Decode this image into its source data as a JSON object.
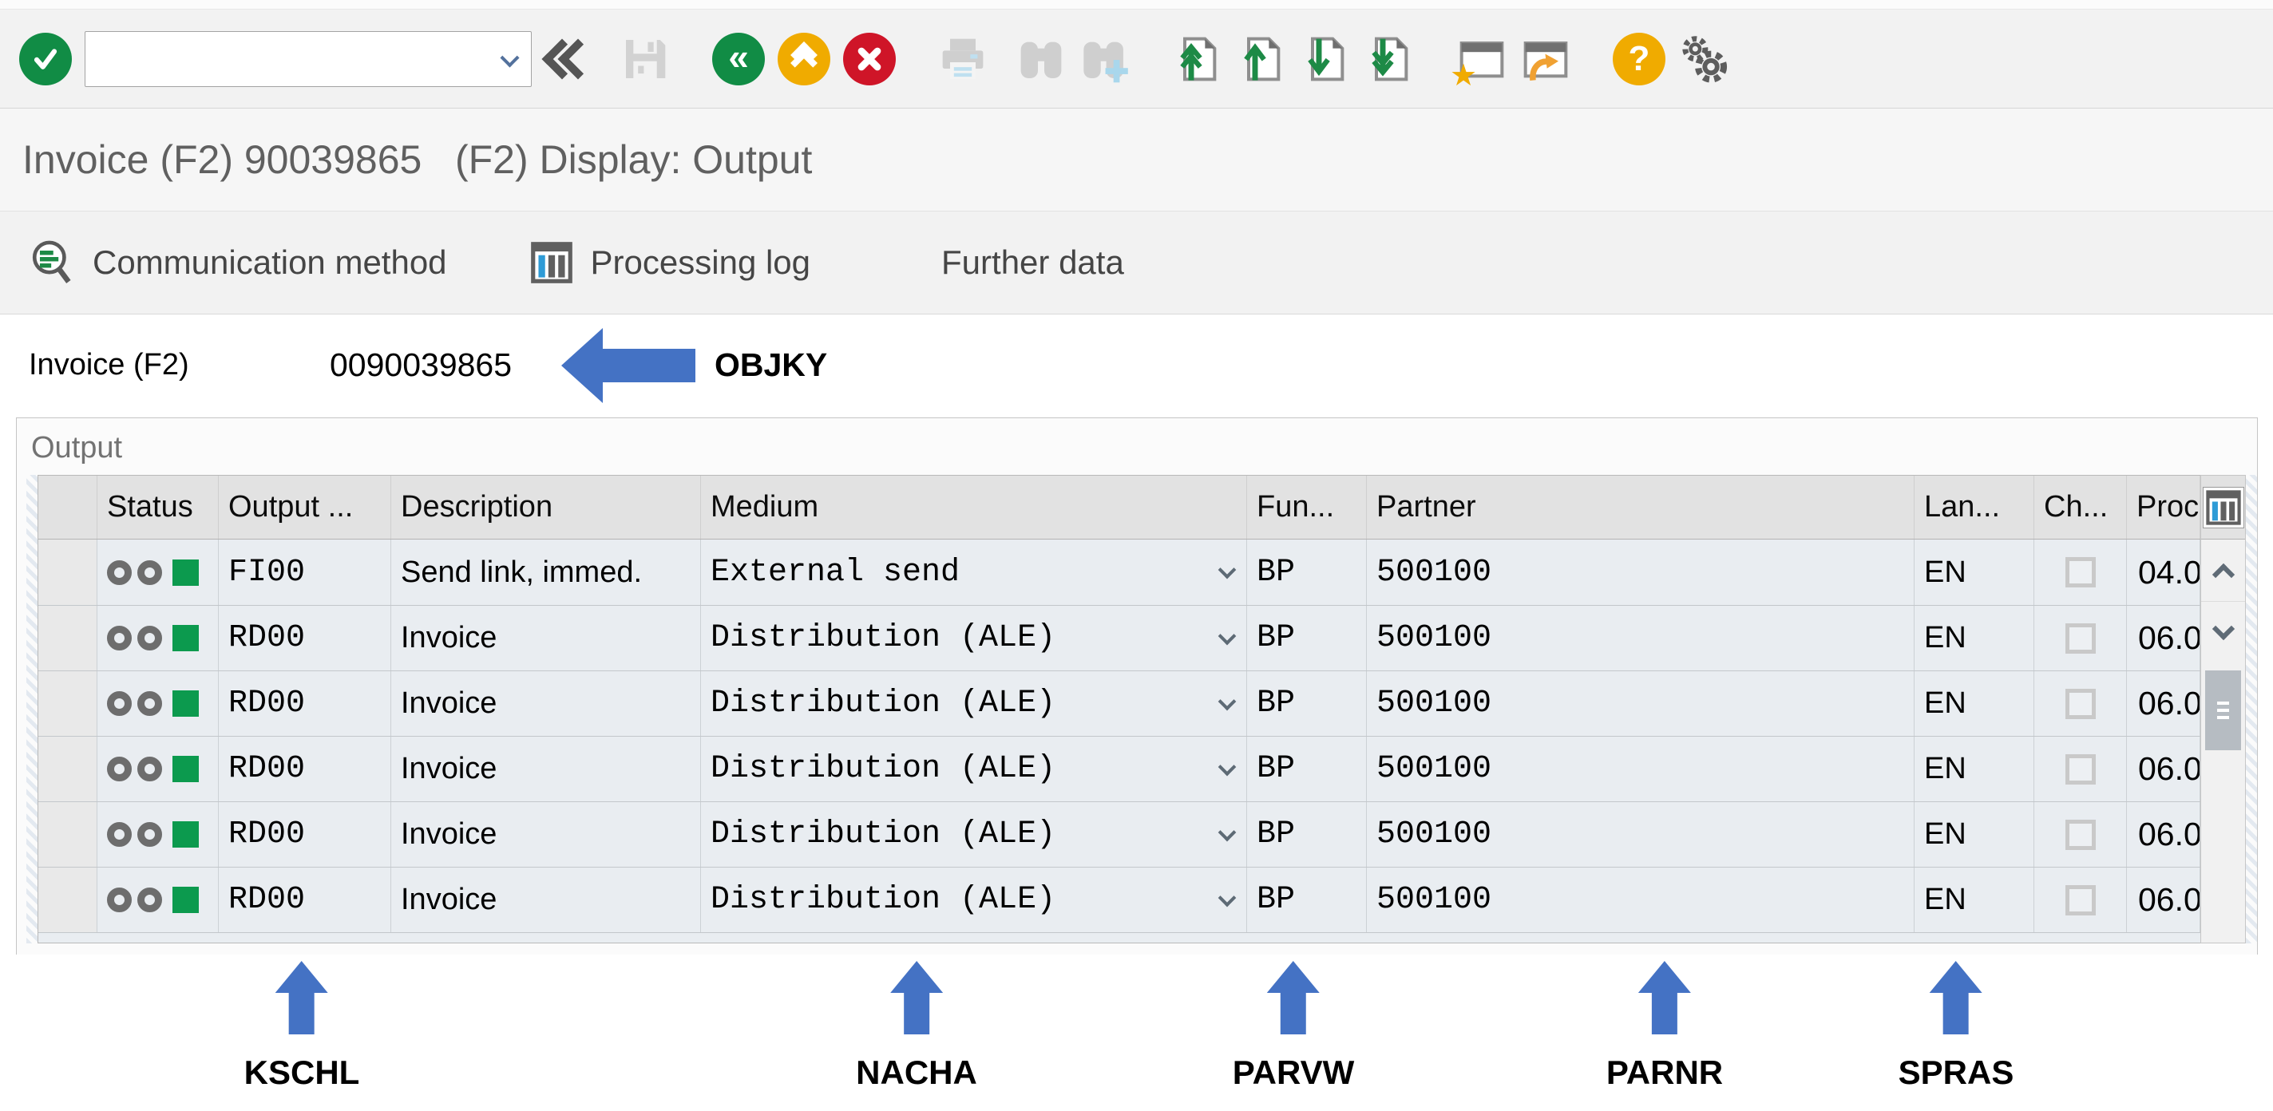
{
  "window": {
    "title": "Invoice (F2) 90039865   (F2) Display: Output"
  },
  "system_toolbar": {
    "command_field": {
      "value": "",
      "placeholder": ""
    },
    "icons": [
      {
        "name": "enter-button"
      },
      {
        "name": "command-field-dropdown"
      },
      {
        "name": "collapse-toolbar-icon"
      },
      {
        "name": "save-icon"
      },
      {
        "name": "back-button"
      },
      {
        "name": "exit-button"
      },
      {
        "name": "cancel-button"
      },
      {
        "name": "print-icon"
      },
      {
        "name": "find-icon"
      },
      {
        "name": "find-next-icon"
      },
      {
        "name": "first-page-icon"
      },
      {
        "name": "previous-page-icon"
      },
      {
        "name": "next-page-icon"
      },
      {
        "name": "last-page-icon"
      },
      {
        "name": "new-session-icon"
      },
      {
        "name": "create-shortcut-icon"
      },
      {
        "name": "help-button"
      },
      {
        "name": "customize-layout-icon"
      }
    ]
  },
  "app_toolbar": {
    "items": [
      {
        "label": "Communication method",
        "icon": "communication-method-icon"
      },
      {
        "label": "Processing log",
        "icon": "processing-log-icon"
      },
      {
        "label": "Further data",
        "icon": null
      }
    ]
  },
  "object_key": {
    "label": "Invoice (F2)",
    "value": "0090039865",
    "annotation": "OBJKY"
  },
  "output_section": {
    "title": "Output",
    "table": {
      "columns": [
        {
          "id": "selector",
          "label": ""
        },
        {
          "id": "status",
          "label": "Status"
        },
        {
          "id": "output_type",
          "label": "Output ..."
        },
        {
          "id": "description",
          "label": "Description"
        },
        {
          "id": "medium",
          "label": "Medium"
        },
        {
          "id": "function",
          "label": "Fun..."
        },
        {
          "id": "partner",
          "label": "Partner"
        },
        {
          "id": "language",
          "label": "Lan..."
        },
        {
          "id": "changed",
          "label": "Ch..."
        },
        {
          "id": "proc",
          "label": "Proc"
        }
      ],
      "rows": [
        {
          "status": "processed-green",
          "output_type": "FI00",
          "description": "Send link, immed.",
          "medium": "External send",
          "function": "BP",
          "partner": "500100",
          "language": "EN",
          "changed": false,
          "proc": "04.0"
        },
        {
          "status": "processed-green",
          "output_type": "RD00",
          "description": "Invoice",
          "medium": "Distribution (ALE)",
          "function": "BP",
          "partner": "500100",
          "language": "EN",
          "changed": false,
          "proc": "06.0"
        },
        {
          "status": "processed-green",
          "output_type": "RD00",
          "description": "Invoice",
          "medium": "Distribution (ALE)",
          "function": "BP",
          "partner": "500100",
          "language": "EN",
          "changed": false,
          "proc": "06.0"
        },
        {
          "status": "processed-green",
          "output_type": "RD00",
          "description": "Invoice",
          "medium": "Distribution (ALE)",
          "function": "BP",
          "partner": "500100",
          "language": "EN",
          "changed": false,
          "proc": "06.0"
        },
        {
          "status": "processed-green",
          "output_type": "RD00",
          "description": "Invoice",
          "medium": "Distribution (ALE)",
          "function": "BP",
          "partner": "500100",
          "language": "EN",
          "changed": false,
          "proc": "06.0"
        },
        {
          "status": "processed-green",
          "output_type": "RD00",
          "description": "Invoice",
          "medium": "Distribution (ALE)",
          "function": "BP",
          "partner": "500100",
          "language": "EN",
          "changed": false,
          "proc": "06.0"
        }
      ]
    }
  },
  "annotations": {
    "column_labels": [
      {
        "label": "KSCHL"
      },
      {
        "label": "NACHA"
      },
      {
        "label": "PARVW"
      },
      {
        "label": "PARNR"
      },
      {
        "label": "SPRAS"
      }
    ]
  },
  "colors": {
    "annotation_blue": "#4472c4",
    "sap_green": "#118c45",
    "sap_amber": "#f0ab00",
    "sap_red": "#cf1528",
    "status_green": "#0c9a4e",
    "row_bg": "#e9edf1",
    "header_bg": "#e2e2e2"
  }
}
